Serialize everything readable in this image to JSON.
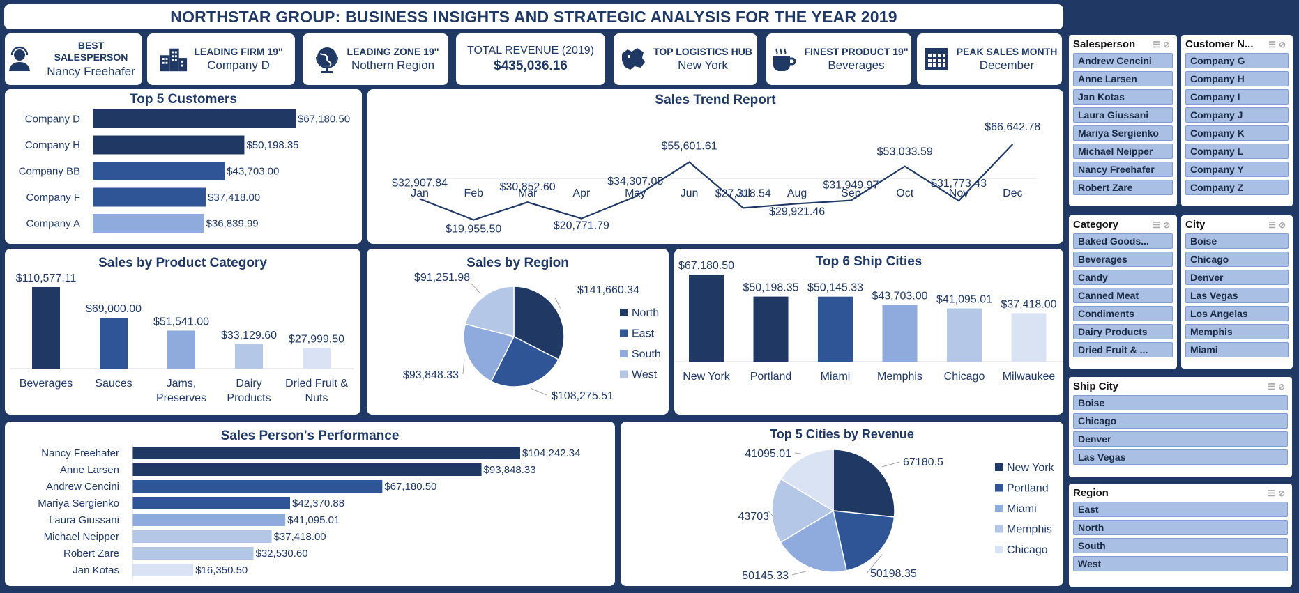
{
  "header": {
    "title": "NORTHSTAR GROUP: BUSINESS INSIGHTS AND STRATEGIC ANALYSIS FOR THE YEAR 2019"
  },
  "kpis": [
    {
      "label": "BEST SALESPERSON",
      "value": "Nancy Freehafer",
      "icon": "person-headset-icon"
    },
    {
      "label": "LEADING FIRM 19''",
      "value": "Company D",
      "icon": "buildings-icon"
    },
    {
      "label": "LEADING ZONE 19''",
      "value": "Nothern Region",
      "icon": "globe-icon"
    },
    {
      "label": "TOTAL REVENUE (2019)",
      "value": "$435,036.16",
      "icon": ""
    },
    {
      "label": "TOP LOGISTICS HUB",
      "value": "New York",
      "icon": "map-region-icon"
    },
    {
      "label": "FINEST PRODUCT 19''",
      "value": "Beverages",
      "icon": "coffee-cup-icon"
    },
    {
      "label": "PEAK SALES MONTH",
      "value": "December",
      "icon": "calendar-icon"
    }
  ],
  "colors": {
    "navy": "#1f3864",
    "c1": "#203864",
    "c2": "#2f5597",
    "c3": "#8faadc",
    "c4": "#b4c7e7",
    "c5": "#dae3f3"
  },
  "chart_data": [
    {
      "id": "top5customers",
      "type": "bar",
      "orientation": "horizontal",
      "title": "Top 5 Customers",
      "categories": [
        "Company D",
        "Company H",
        "Company BB",
        "Company F",
        "Company A"
      ],
      "values": [
        67180.5,
        50198.35,
        43703.0,
        37418.0,
        36839.99
      ],
      "labels": [
        "$67,180.50",
        "$50,198.35",
        "$43,703.00",
        "$37,418.00",
        "$36,839.99"
      ],
      "colors": [
        "#203864",
        "#203864",
        "#2f5597",
        "#2f5597",
        "#8faadc"
      ]
    },
    {
      "id": "salestrend",
      "type": "line",
      "title": "Sales Trend Report",
      "categories": [
        "Jan",
        "Feb",
        "Mar",
        "Apr",
        "May",
        "Jun",
        "Jul",
        "Aug",
        "Sep",
        "Oct",
        "Nov",
        "Dec"
      ],
      "values": [
        32907.84,
        19955.5,
        30852.6,
        20771.79,
        34307.05,
        55601.61,
        27318.54,
        29921.46,
        31949.97,
        53033.59,
        31773.43,
        66642.78
      ],
      "labels": [
        "$32,907.84",
        "$19,955.50",
        "$30,852.60",
        "$20,771.79",
        "$34,307.05",
        "$55,601.61",
        "$27,318.54",
        "$29,921.46",
        "$31,949.97",
        "$53,033.59",
        "$31,773.43",
        "$66,642.78"
      ]
    },
    {
      "id": "productcategory",
      "type": "bar",
      "title": "Sales by Product Category",
      "categories": [
        "Beverages",
        "Sauces",
        "Jams, Preserves",
        "Dairy Products",
        "Dried Fruit & Nuts"
      ],
      "category_lines": [
        [
          "Beverages"
        ],
        [
          "Sauces"
        ],
        [
          "Jams,",
          "Preserves"
        ],
        [
          "Dairy",
          "Products"
        ],
        [
          "Dried Fruit &",
          "Nuts"
        ]
      ],
      "values": [
        110577.11,
        69000.0,
        51541.0,
        33129.6,
        27999.5
      ],
      "labels": [
        "$110,577.11",
        "$69,000.00",
        "$51,541.00",
        "$33,129.60",
        "$27,999.50"
      ],
      "colors": [
        "#203864",
        "#2f5597",
        "#8faadc",
        "#b4c7e7",
        "#dae3f3"
      ]
    },
    {
      "id": "region",
      "type": "pie",
      "title": "Sales by Region",
      "categories": [
        "North",
        "East",
        "South",
        "West"
      ],
      "values": [
        141660.34,
        108275.51,
        93848.33,
        91251.98
      ],
      "labels": [
        "$141,660.34",
        "$108,275.51",
        "$93,848.33",
        "$91,251.98"
      ],
      "colors": [
        "#203864",
        "#2f5597",
        "#8faadc",
        "#b4c7e7"
      ],
      "legend": "right"
    },
    {
      "id": "shipcities",
      "type": "bar",
      "title": "Top 6 Ship Cities",
      "categories": [
        "New York",
        "Portland",
        "Miami",
        "Memphis",
        "Chicago",
        "Milwaukee"
      ],
      "values": [
        67180.5,
        50198.35,
        50145.33,
        43703.0,
        41095.01,
        37418.0
      ],
      "labels": [
        "$67,180.50",
        "$50,198.35",
        "$50,145.33",
        "$43,703.00",
        "$41,095.01",
        "$37,418.00"
      ],
      "colors": [
        "#203864",
        "#203864",
        "#2f5597",
        "#8faadc",
        "#b4c7e7",
        "#dae3f3"
      ]
    },
    {
      "id": "salesperson",
      "type": "bar",
      "orientation": "horizontal",
      "title": "Sales Person's Performance",
      "categories": [
        "Nancy Freehafer",
        "Anne Larsen",
        "Andrew Cencini",
        "Mariya Sergienko",
        "Laura Giussani",
        "Michael Neipper",
        "Robert Zare",
        "Jan Kotas"
      ],
      "values": [
        104242.34,
        93848.33,
        67180.5,
        42370.88,
        41095.01,
        37418.0,
        32530.6,
        16350.5
      ],
      "labels": [
        "$104,242.34",
        "$93,848.33",
        "$67,180.50",
        "$42,370.88",
        "$41,095.01",
        "$37,418.00",
        "$32,530.60",
        "$16,350.50"
      ],
      "colors": [
        "#203864",
        "#203864",
        "#2f5597",
        "#2f5597",
        "#8faadc",
        "#b4c7e7",
        "#b4c7e7",
        "#dae3f3"
      ]
    },
    {
      "id": "top5cities",
      "type": "pie",
      "title": "Top 5 Cities by Revenue",
      "categories": [
        "New York",
        "Portland",
        "Miami",
        "Memphis",
        "Chicago"
      ],
      "values": [
        67180.5,
        50198.35,
        50145.33,
        43703,
        41095.01
      ],
      "labels": [
        "67180.5",
        "50198.35",
        "50145.33",
        "43703",
        "41095.01"
      ],
      "colors": [
        "#203864",
        "#2f5597",
        "#8faadc",
        "#b4c7e7",
        "#dae3f3"
      ],
      "legend": "right"
    }
  ],
  "slicers": [
    {
      "id": "salesperson",
      "title": "Salesperson",
      "items": [
        "Andrew Cencini",
        "Anne Larsen",
        "Jan Kotas",
        "Laura Giussani",
        "Mariya Sergienko",
        "Michael Neipper",
        "Nancy Freehafer",
        "Robert Zare"
      ]
    },
    {
      "id": "customer",
      "title": "Customer N...",
      "items": [
        "Company G",
        "Company H",
        "Company I",
        "Company J",
        "Company K",
        "Company L",
        "Company Y",
        "Company Z"
      ]
    },
    {
      "id": "category",
      "title": "Category",
      "items": [
        "Baked Goods...",
        "Beverages",
        "Candy",
        "Canned Meat",
        "Condiments",
        "Dairy Products",
        "Dried Fruit & ..."
      ]
    },
    {
      "id": "city",
      "title": "City",
      "items": [
        "Boise",
        "Chicago",
        "Denver",
        "Las Vegas",
        "Los Angelas",
        "Memphis",
        "Miami"
      ]
    },
    {
      "id": "shipcity",
      "title": "Ship City",
      "items": [
        "Boise",
        "Chicago",
        "Denver",
        "Las Vegas"
      ]
    },
    {
      "id": "region",
      "title": "Region",
      "items": [
        "East",
        "North",
        "South",
        "West"
      ]
    }
  ]
}
